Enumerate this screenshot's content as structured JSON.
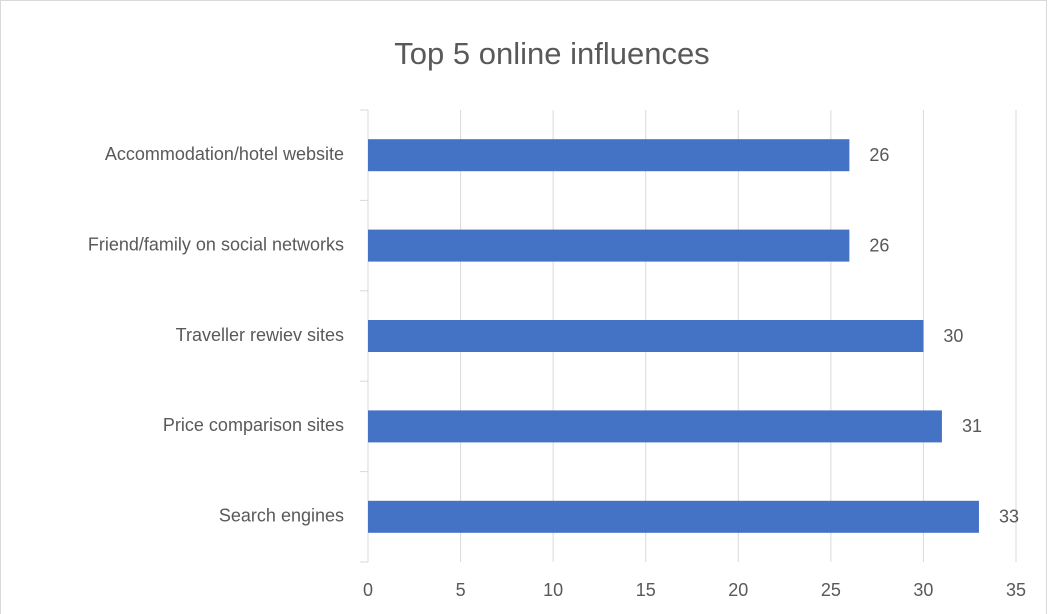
{
  "chart_data": {
    "type": "bar",
    "orientation": "horizontal",
    "title": "Top 5 online influences",
    "categories": [
      "Accommodation/hotel website",
      "Friend/family on social networks",
      "Traveller rewiev sites",
      "Price comparison sites",
      "Search engines"
    ],
    "values": [
      26,
      26,
      30,
      31,
      33
    ],
    "color": "#4472c4",
    "xlim": [
      0,
      35
    ],
    "xticks": [
      0,
      5,
      10,
      15,
      20,
      25,
      30,
      35
    ],
    "grid": true
  }
}
